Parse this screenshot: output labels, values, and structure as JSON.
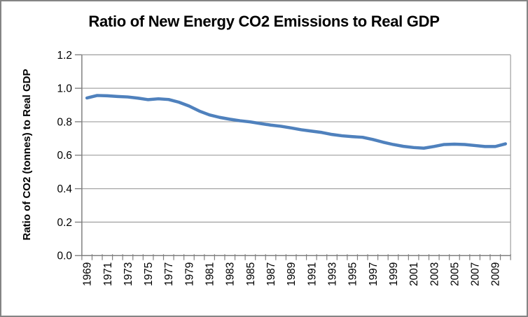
{
  "chart_data": {
    "type": "line",
    "title": "Ratio of New Energy CO2 Emissions to Real GDP",
    "ylabel": "Ratio of CO2 (tonnes) to Real GDP",
    "xlabel": "",
    "legend": "none",
    "grid": "horizontal",
    "ylim": [
      0.0,
      1.2
    ],
    "ytick_step": 0.2,
    "ytick_labels": [
      "0.0",
      "0.2",
      "0.4",
      "0.6",
      "0.8",
      "1.0",
      "1.2"
    ],
    "xtick_labels": [
      "1969",
      "1971",
      "1973",
      "1975",
      "1977",
      "1979",
      "1981",
      "1983",
      "1985",
      "1987",
      "1989",
      "1991",
      "1993",
      "1995",
      "1997",
      "1999",
      "2001",
      "2003",
      "2005",
      "2007",
      "2009"
    ],
    "x": [
      1969,
      1970,
      1971,
      1972,
      1973,
      1974,
      1975,
      1976,
      1977,
      1978,
      1979,
      1980,
      1981,
      1982,
      1983,
      1984,
      1985,
      1986,
      1987,
      1988,
      1989,
      1990,
      1991,
      1992,
      1993,
      1994,
      1995,
      1996,
      1997,
      1998,
      1999,
      2000,
      2001,
      2002,
      2003,
      2004,
      2005,
      2006,
      2007,
      2008,
      2009,
      2010
    ],
    "values": [
      0.942,
      0.957,
      0.955,
      0.951,
      0.948,
      0.941,
      0.932,
      0.937,
      0.933,
      0.917,
      0.894,
      0.864,
      0.841,
      0.826,
      0.815,
      0.806,
      0.799,
      0.789,
      0.78,
      0.773,
      0.763,
      0.752,
      0.744,
      0.736,
      0.724,
      0.716,
      0.711,
      0.707,
      0.694,
      0.678,
      0.664,
      0.653,
      0.646,
      0.642,
      0.652,
      0.664,
      0.666,
      0.664,
      0.658,
      0.652,
      0.652,
      0.668
    ],
    "colors": {
      "line": "#4F81BD",
      "gridline": "#A6A6A6",
      "axis": "#7F7F7F",
      "tick": "#7F7F7F",
      "text": "#000000",
      "background": "#FFFFFF",
      "frame_border": "#848484"
    }
  }
}
